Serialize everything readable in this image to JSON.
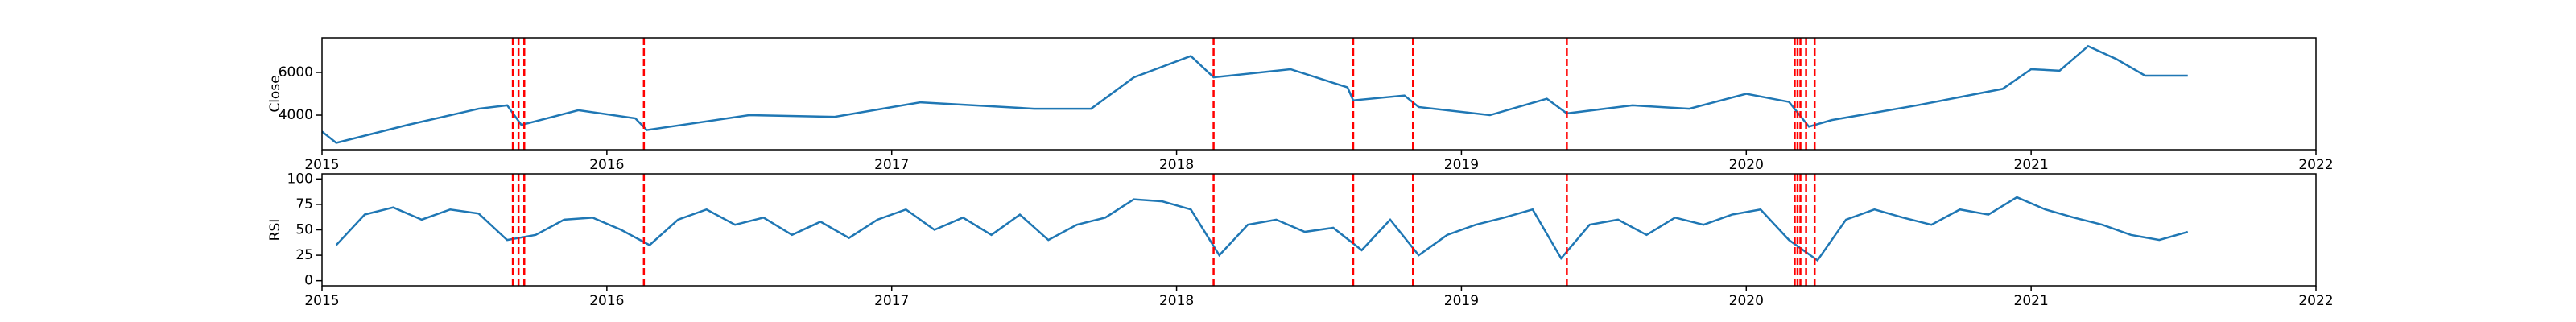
{
  "chart_data": [
    {
      "type": "line",
      "ylabel": "Close",
      "color": "#1f77b4",
      "x": [
        2015.0,
        2015.05,
        2015.3,
        2015.55,
        2015.65,
        2015.7,
        2015.9,
        2016.1,
        2016.14,
        2016.5,
        2016.8,
        2017.1,
        2017.5,
        2017.7,
        2017.85,
        2018.05,
        2018.13,
        2018.4,
        2018.6,
        2018.62,
        2018.8,
        2018.85,
        2019.1,
        2019.3,
        2019.37,
        2019.6,
        2019.8,
        2020.0,
        2020.15,
        2020.22,
        2020.3,
        2020.6,
        2020.9,
        2021.0,
        2021.1,
        2021.2,
        2021.3,
        2021.4,
        2021.55
      ],
      "values": [
        3230,
        2700,
        3540,
        4300,
        4460,
        3540,
        4230,
        3850,
        3300,
        4000,
        3920,
        4600,
        4300,
        4300,
        5770,
        6770,
        5770,
        6150,
        5300,
        4690,
        4920,
        4380,
        4000,
        4770,
        4080,
        4460,
        4300,
        5000,
        4620,
        3460,
        3770,
        4460,
        5230,
        6150,
        6080,
        7230,
        6620,
        5850,
        5850
      ],
      "xlim": [
        2015,
        2022
      ],
      "xticks": [
        2015,
        2016,
        2017,
        2018,
        2019,
        2020,
        2021,
        2022
      ],
      "ylim": [
        2380,
        7620
      ],
      "yticks": [
        4000,
        6000
      ],
      "vlines": [
        2015.67,
        2015.69,
        2015.71,
        2016.13,
        2018.13,
        2018.62,
        2018.83,
        2019.37,
        2020.17,
        2020.18,
        2020.19,
        2020.21,
        2020.24
      ],
      "vline_color": "#ff0000"
    },
    {
      "type": "line",
      "ylabel": "RSI",
      "color": "#1f77b4",
      "x": [
        2015.05,
        2015.15,
        2015.25,
        2015.35,
        2015.45,
        2015.55,
        2015.65,
        2015.75,
        2015.85,
        2015.95,
        2016.05,
        2016.15,
        2016.25,
        2016.35,
        2016.45,
        2016.55,
        2016.65,
        2016.75,
        2016.85,
        2016.95,
        2017.05,
        2017.15,
        2017.25,
        2017.35,
        2017.45,
        2017.55,
        2017.65,
        2017.75,
        2017.85,
        2017.95,
        2018.05,
        2018.15,
        2018.25,
        2018.35,
        2018.45,
        2018.55,
        2018.65,
        2018.75,
        2018.85,
        2018.95,
        2019.05,
        2019.15,
        2019.25,
        2019.35,
        2019.45,
        2019.55,
        2019.65,
        2019.75,
        2019.85,
        2019.95,
        2020.05,
        2020.15,
        2020.25,
        2020.35,
        2020.45,
        2020.55,
        2020.65,
        2020.75,
        2020.85,
        2020.95,
        2021.05,
        2021.15,
        2021.25,
        2021.35,
        2021.45,
        2021.55
      ],
      "values": [
        35,
        65,
        72,
        60,
        70,
        66,
        40,
        45,
        60,
        62,
        50,
        35,
        60,
        70,
        55,
        62,
        45,
        58,
        42,
        60,
        70,
        50,
        62,
        45,
        65,
        40,
        55,
        62,
        80,
        78,
        70,
        25,
        55,
        60,
        48,
        52,
        30,
        60,
        25,
        45,
        55,
        62,
        70,
        22,
        55,
        60,
        45,
        62,
        55,
        65,
        70,
        40,
        20,
        60,
        70,
        62,
        55,
        70,
        65,
        82,
        70,
        62,
        55,
        45,
        40,
        48
      ],
      "xlim": [
        2015,
        2022
      ],
      "xticks": [
        2015,
        2016,
        2017,
        2018,
        2019,
        2020,
        2021,
        2022
      ],
      "ylim": [
        -5,
        105
      ],
      "yticks": [
        0,
        25,
        50,
        75,
        100
      ],
      "vlines": [
        2015.67,
        2015.69,
        2015.71,
        2016.13,
        2018.13,
        2018.62,
        2018.83,
        2019.37,
        2020.17,
        2020.18,
        2020.19,
        2020.21,
        2020.24
      ],
      "vline_color": "#ff0000"
    }
  ]
}
